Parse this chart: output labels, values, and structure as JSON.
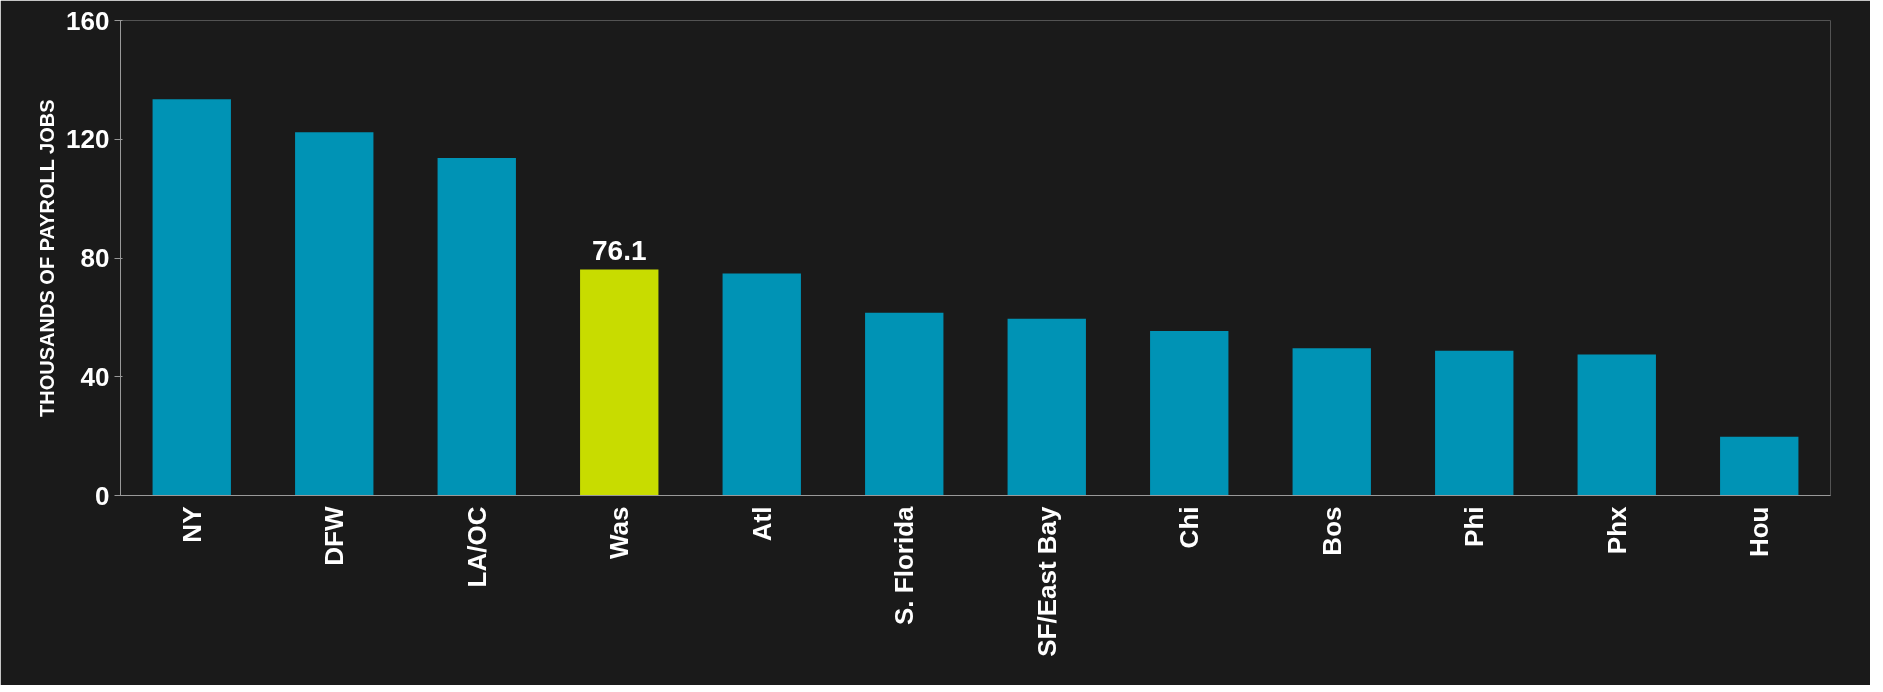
{
  "chart_data": {
    "type": "bar",
    "ylabel": "THOUSANDS OF PAYROLL JOBS",
    "categories": [
      "NY",
      "DFW",
      "LA/OC",
      "Was",
      "Atl",
      "S. Florida",
      "SF/East Bay",
      "Chi",
      "Bos",
      "Phi",
      "Phx",
      "Hou"
    ],
    "values": [
      133.5,
      122.4,
      113.7,
      76.1,
      74.8,
      61.6,
      59.5,
      55.4,
      49.6,
      48.8,
      47.5,
      19.8
    ],
    "colors": [
      "#0093b5",
      "#0093b5",
      "#0093b5",
      "#c8dc00",
      "#0093b5",
      "#0093b5",
      "#0093b5",
      "#0093b5",
      "#0093b5",
      "#0093b5",
      "#0093b5",
      "#0093b5"
    ],
    "value_labels": [
      null,
      null,
      null,
      "76.1",
      null,
      null,
      null,
      null,
      null,
      null,
      null,
      null
    ],
    "ylim": [
      0,
      160
    ],
    "yticks": [
      0,
      40,
      80,
      120,
      160
    ],
    "grid": false
  }
}
